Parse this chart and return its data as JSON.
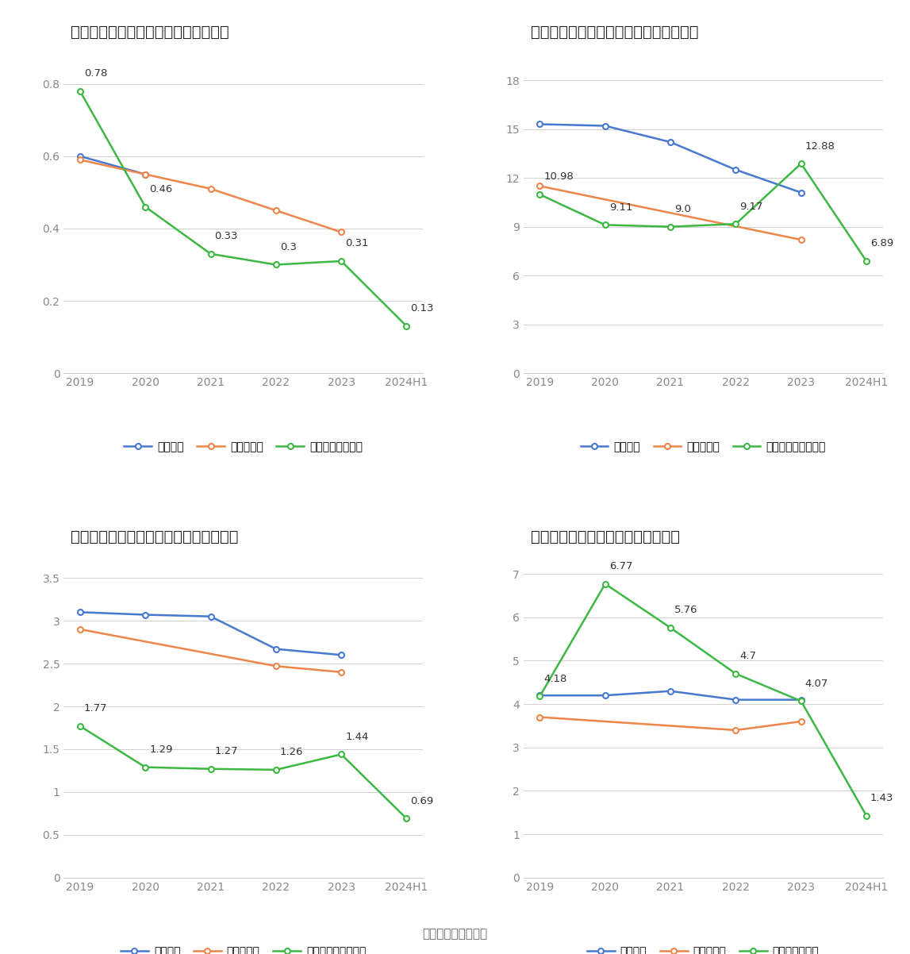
{
  "x_labels": [
    "2019",
    "2020",
    "2021",
    "2022",
    "2023",
    "2024H1"
  ],
  "charts": [
    {
      "title": "恒拓开源历年总资产周转率情况（次）",
      "legend_company": "公司总资产周转率",
      "legend_industry_mean": "行业均值",
      "legend_industry_median": "行业中位数",
      "company": [
        0.78,
        0.46,
        0.33,
        0.3,
        0.31,
        0.13
      ],
      "industry_mean": [
        0.6,
        0.55,
        null,
        null,
        null,
        null
      ],
      "industry_median": [
        0.59,
        0.55,
        0.51,
        0.45,
        0.39,
        null
      ],
      "ylim": [
        0,
        0.9
      ],
      "yticks": [
        0,
        0.2,
        0.4,
        0.6,
        0.8
      ]
    },
    {
      "title": "恒拓开源历年固定资产周转率情况（次）",
      "legend_company": "公司固定资产周转率",
      "legend_industry_mean": "行业均值",
      "legend_industry_median": "行业中位数",
      "company": [
        10.98,
        9.11,
        9.0,
        9.17,
        12.88,
        6.89
      ],
      "industry_mean": [
        15.3,
        15.2,
        14.2,
        12.5,
        11.1,
        null
      ],
      "industry_median": [
        11.5,
        null,
        null,
        null,
        8.2,
        null
      ],
      "ylim": [
        0,
        20
      ],
      "yticks": [
        0,
        3,
        6,
        9,
        12,
        15,
        18
      ]
    },
    {
      "title": "恒拓开源历年应收账款周转率情况（次）",
      "legend_company": "公司应收账款周转率",
      "legend_industry_mean": "行业均值",
      "legend_industry_median": "行业中位数",
      "company": [
        1.77,
        1.29,
        1.27,
        1.26,
        1.44,
        0.69
      ],
      "industry_mean": [
        3.1,
        3.07,
        3.05,
        2.67,
        2.6,
        null
      ],
      "industry_median": [
        2.9,
        null,
        null,
        2.47,
        2.4,
        null
      ],
      "ylim": [
        0,
        3.8
      ],
      "yticks": [
        0,
        0.5,
        1,
        1.5,
        2,
        2.5,
        3,
        3.5
      ]
    },
    {
      "title": "恒拓开源历年存货周转率情况（次）",
      "legend_company": "公司存货周转率",
      "legend_industry_mean": "行业均值",
      "legend_industry_median": "行业中位数",
      "company": [
        4.18,
        6.77,
        5.76,
        4.7,
        4.07,
        1.43
      ],
      "industry_mean": [
        4.2,
        4.2,
        4.3,
        4.1,
        4.1,
        null
      ],
      "industry_median": [
        3.7,
        null,
        null,
        3.4,
        3.6,
        null
      ],
      "ylim": [
        0,
        7.5
      ],
      "yticks": [
        0,
        1,
        2,
        3,
        4,
        5,
        6,
        7
      ]
    }
  ],
  "company_color": "#3cb843",
  "industry_mean_color": "#4878d0",
  "industry_median_color": "#ee854a",
  "line_width": 1.8,
  "marker_size": 5,
  "bg_color": "#ffffff",
  "grid_color": "#d0d0d0",
  "title_fontsize": 14,
  "legend_fontsize": 10,
  "tick_fontsize": 10,
  "annotation_fontsize": 9.5,
  "footer": "数据来源：恒生聚源"
}
